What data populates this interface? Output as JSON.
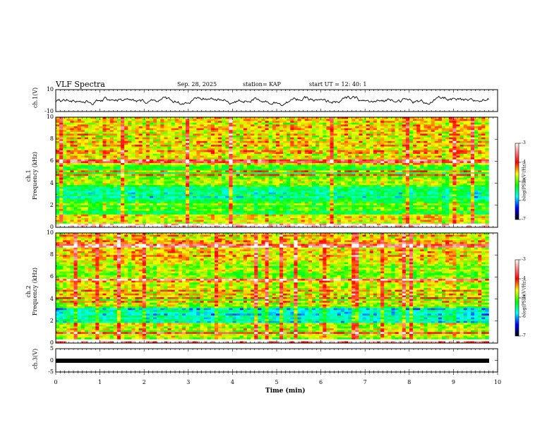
{
  "header": {
    "title": "VLF Spectra",
    "date": "Sep. 28, 2025",
    "station": "station= KAP",
    "start": "start  UT  =   12: 40: 1"
  },
  "colors": {
    "colormap": [
      "#ffffff",
      "#ff0000",
      "#ffff00",
      "#00ff00",
      "#00ffff",
      "#0000ff",
      "#000000"
    ],
    "trace": "#000000"
  },
  "chart_data": [
    {
      "type": "line",
      "name": "ch.1 waveform",
      "ylabel": "ch.1(V)",
      "ylim": [
        -10,
        10
      ],
      "yticks": [
        "10",
        "-10"
      ],
      "xlim": [
        0,
        10
      ],
      "note": "noisy waveform, amplitude roughly -5 to 5 V over 0-9.8 min"
    },
    {
      "type": "heatmap",
      "name": "ch.1 spectrogram",
      "ylabel_line1": "ch.1",
      "ylabel_line2": "Frequency (kHz)",
      "ylim": [
        0,
        10
      ],
      "yticks": [
        "10",
        "8",
        "6",
        "4",
        "2",
        "0"
      ],
      "xlim": [
        0,
        9.8
      ],
      "colorbar": {
        "label": "log(PSD)(V²/Hz)",
        "range": [
          -7,
          -3
        ],
        "ticks": [
          "-3",
          "-4",
          "-5",
          "-6",
          "-7"
        ]
      },
      "dominant_bands_kHz": [
        {
          "from": 0,
          "to": 0.3,
          "level": -3.2
        },
        {
          "from": 0.3,
          "to": 1.2,
          "level": -4.3
        },
        {
          "from": 1.2,
          "to": 2.4,
          "level": -4.9
        },
        {
          "from": 2.4,
          "to": 3.6,
          "level": -5.4
        },
        {
          "from": 3.6,
          "to": 4.6,
          "level": -4.7
        },
        {
          "from": 4.6,
          "to": 5.6,
          "level": -5.0
        },
        {
          "from": 5.6,
          "to": 6.6,
          "level": -4.5
        },
        {
          "from": 6.6,
          "to": 10,
          "level": -4.4
        }
      ]
    },
    {
      "type": "heatmap",
      "name": "ch.2 spectrogram",
      "ylabel_line1": "ch.2",
      "ylabel_line2": "Frequency (kHz)",
      "ylim": [
        0,
        10
      ],
      "yticks": [
        "10",
        "8",
        "6",
        "4",
        "2",
        "0"
      ],
      "xlim": [
        0,
        9.8
      ],
      "colorbar": {
        "label": "log(PSD)(V²/Hz)",
        "range": [
          -7,
          -3
        ],
        "ticks": [
          "-3",
          "-4",
          "-5",
          "-6",
          "-7"
        ]
      },
      "dominant_bands_kHz": [
        {
          "from": 0,
          "to": 0.3,
          "level": -3.2
        },
        {
          "from": 0.3,
          "to": 1.8,
          "level": -4.6
        },
        {
          "from": 1.8,
          "to": 3.2,
          "level": -5.6
        },
        {
          "from": 3.2,
          "to": 4.4,
          "level": -4.8
        },
        {
          "from": 4.4,
          "to": 5.8,
          "level": -4.4
        },
        {
          "from": 5.8,
          "to": 7.4,
          "level": -4.7
        },
        {
          "from": 7.4,
          "to": 10,
          "level": -4.3
        }
      ]
    },
    {
      "type": "line",
      "name": "ch.3 signal",
      "ylabel": "ch.3(V)",
      "ylim": [
        -5,
        5
      ],
      "yticks": [
        "5",
        "0",
        "-5"
      ],
      "xlim": [
        0,
        10
      ],
      "note": "thick flat trace at about -0.5 V from 0 to 9.8 min"
    }
  ],
  "x_axis": {
    "label": "Time  (min)",
    "ticks": [
      "0",
      "1",
      "2",
      "3",
      "4",
      "5",
      "6",
      "7",
      "8",
      "9",
      "10"
    ],
    "xlim": [
      0,
      10
    ]
  }
}
